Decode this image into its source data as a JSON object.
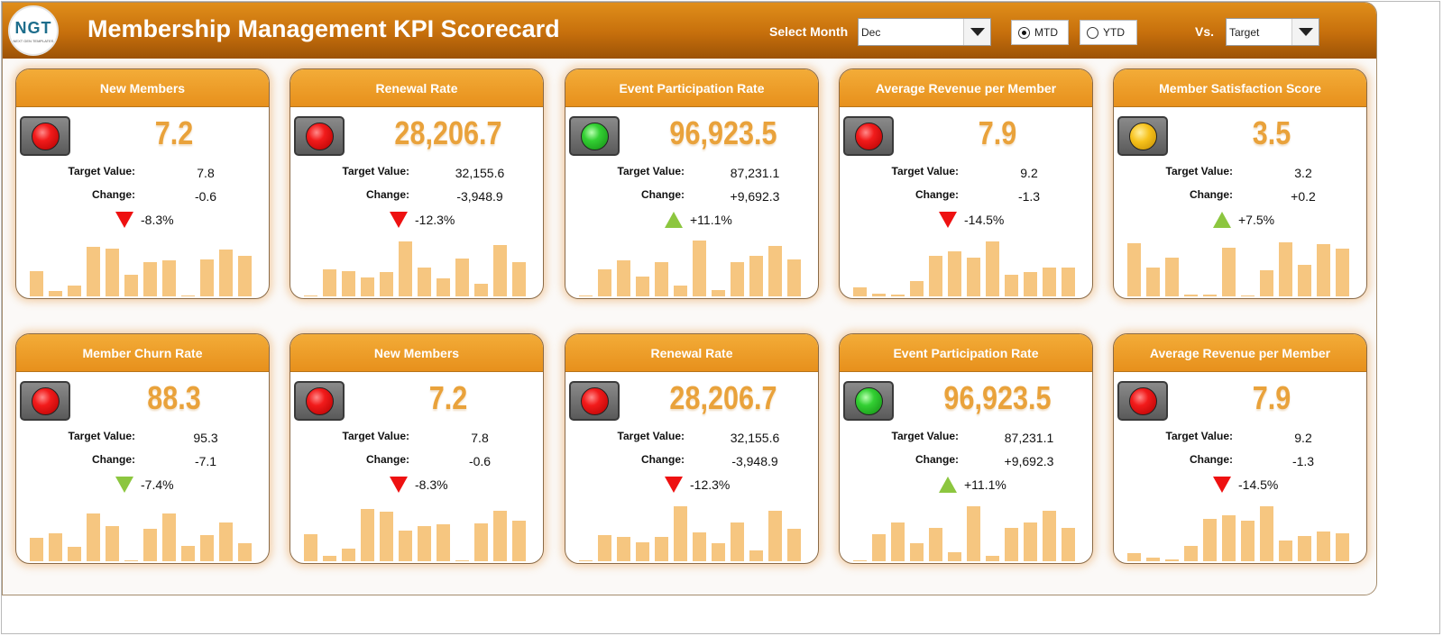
{
  "header": {
    "logo_text": "NGT",
    "logo_sub": "NEXT GEN TEMPLATES",
    "title": "Membership Management KPI Scorecard",
    "select_month_label": "Select Month",
    "month_value": "Dec",
    "mode_options": [
      {
        "label": "MTD",
        "selected": true
      },
      {
        "label": "YTD",
        "selected": false
      }
    ],
    "vs_label": "Vs.",
    "vs_value": "Target"
  },
  "colors": {
    "header": "#c66f0c",
    "card_head": "#e7901c",
    "value": "#e9a23b",
    "bar": "#f6c680",
    "down": "#ee1111",
    "up": "#8cc63f"
  },
  "labels": {
    "target": "Target Value:",
    "change": "Change:"
  },
  "cards": [
    {
      "title": "New Members",
      "value": "7.2",
      "light": "red",
      "target": "7.8",
      "change": "-0.6",
      "pct": "-8.3%",
      "arrow": "down-red",
      "bars": [
        0.45,
        0.09,
        0.2,
        0.88,
        0.85,
        0.38,
        0.62,
        0.65,
        0.02,
        0.66,
        0.84,
        0.72
      ]
    },
    {
      "title": "Renewal Rate",
      "value": "28,206.7",
      "light": "red",
      "target": "32,155.6",
      "change": "-3,948.9",
      "pct": "-12.3%",
      "arrow": "down-red",
      "bars": [
        0.01,
        0.49,
        0.45,
        0.34,
        0.44,
        0.98,
        0.51,
        0.33,
        0.68,
        0.22,
        0.92,
        0.61
      ]
    },
    {
      "title": "Event Participation Rate",
      "value": "96,923.5",
      "light": "green",
      "target": "87,231.1",
      "change": "+9,692.3",
      "pct": "+11.1%",
      "arrow": "up-green",
      "bars": [
        0.02,
        0.49,
        0.64,
        0.36,
        0.62,
        0.2,
        1.0,
        0.12,
        0.61,
        0.72,
        0.91,
        0.66
      ]
    },
    {
      "title": "Average Revenue per Member",
      "value": "7.9",
      "light": "red",
      "target": "9.2",
      "change": "-1.3",
      "pct": "-14.5%",
      "arrow": "down-red",
      "bars": [
        0.16,
        0.05,
        0.04,
        0.27,
        0.72,
        0.81,
        0.7,
        0.98,
        0.38,
        0.43,
        0.52,
        0.52
      ]
    },
    {
      "title": "Member Satisfaction Score",
      "value": "3.5",
      "light": "yellow",
      "target": "3.2",
      "change": "+0.2",
      "pct": "+7.5%",
      "arrow": "up-green",
      "bars": [
        0.95,
        0.51,
        0.7,
        0.03,
        0.04,
        0.87,
        0.02,
        0.46,
        0.97,
        0.57,
        0.94,
        0.86
      ]
    },
    {
      "title": "Member Churn Rate",
      "value": "88.3",
      "light": "red",
      "target": "95.3",
      "change": "-7.1",
      "pct": "-7.4%",
      "arrow": "down-green",
      "bars": [
        0.42,
        0.5,
        0.25,
        0.86,
        0.63,
        0.02,
        0.58,
        0.86,
        0.27,
        0.47,
        0.7,
        0.32
      ]
    },
    {
      "title": "New Members",
      "value": "7.2",
      "light": "red",
      "target": "7.8",
      "change": "-0.6",
      "pct": "-8.3%",
      "arrow": "down-red",
      "bars": [
        0.48,
        0.1,
        0.22,
        0.93,
        0.88,
        0.55,
        0.63,
        0.66,
        0.02,
        0.68,
        0.9,
        0.72
      ]
    },
    {
      "title": "Renewal Rate",
      "value": "28,206.7",
      "light": "red",
      "target": "32,155.6",
      "change": "-3,948.9",
      "pct": "-12.3%",
      "arrow": "down-red",
      "bars": [
        0.02,
        0.46,
        0.44,
        0.34,
        0.44,
        0.98,
        0.52,
        0.33,
        0.69,
        0.2,
        0.9,
        0.58
      ]
    },
    {
      "title": "Event Participation Rate",
      "value": "96,923.5",
      "light": "green",
      "target": "87,231.1",
      "change": "+9,692.3",
      "pct": "+11.1%",
      "arrow": "up-green",
      "bars": [
        0.02,
        0.48,
        0.7,
        0.33,
        0.6,
        0.16,
        0.98,
        0.1,
        0.6,
        0.7,
        0.9,
        0.6
      ]
    },
    {
      "title": "Average Revenue per Member",
      "value": "7.9",
      "light": "red",
      "target": "9.2",
      "change": "-1.3",
      "pct": "-14.5%",
      "arrow": "down-red",
      "bars": [
        0.15,
        0.07,
        0.04,
        0.27,
        0.76,
        0.82,
        0.72,
        0.98,
        0.37,
        0.45,
        0.53,
        0.5
      ]
    }
  ]
}
